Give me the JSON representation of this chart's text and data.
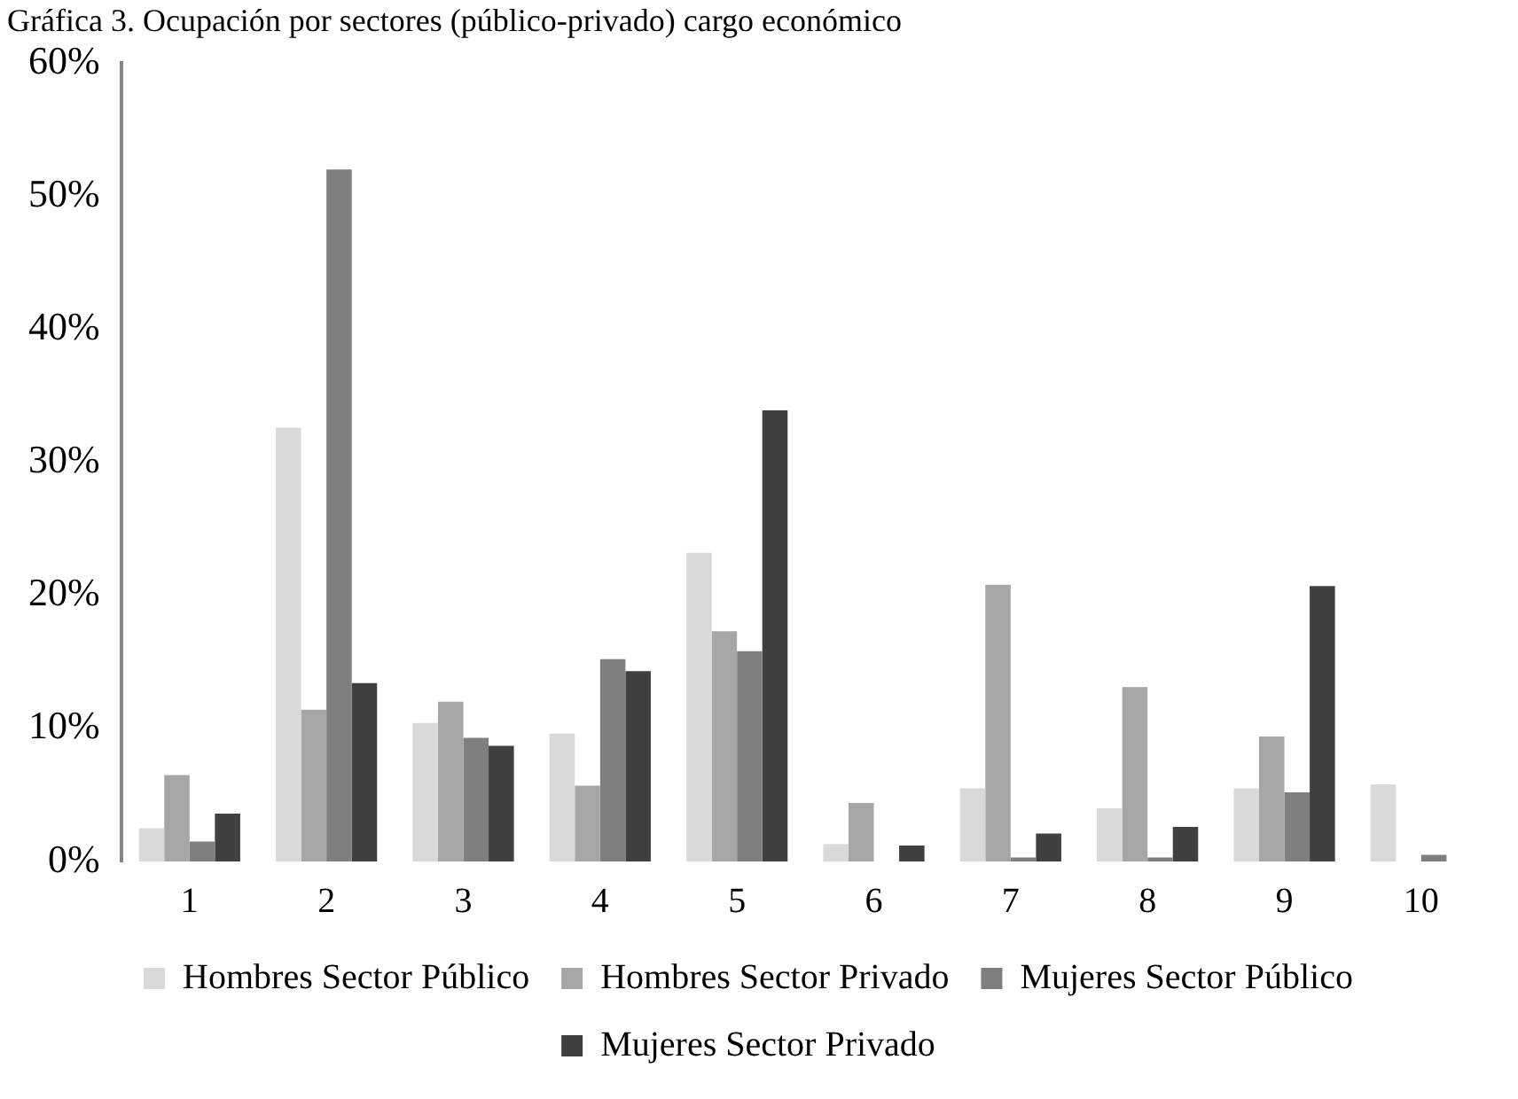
{
  "chart_data": {
    "type": "bar",
    "title": "Gráfica 3. Ocupación por sectores (público-privado) cargo económico",
    "categories": [
      "1",
      "2",
      "3",
      "4",
      "5",
      "6",
      "7",
      "8",
      "9",
      "10"
    ],
    "series": [
      {
        "name": "Hombres Sector Público",
        "color": "#d9d9d9",
        "values": [
          2.5,
          32.6,
          10.4,
          9.6,
          23.2,
          1.3,
          5.5,
          4.0,
          5.5,
          5.8
        ]
      },
      {
        "name": "Hombres Sector Privado",
        "color": "#a6a6a6",
        "values": [
          6.5,
          11.4,
          12.0,
          5.7,
          17.3,
          4.4,
          20.8,
          13.1,
          9.4,
          0
        ]
      },
      {
        "name": "Mujeres Sector Público",
        "color": "#7f7f7f",
        "values": [
          1.5,
          52.0,
          9.3,
          15.2,
          15.8,
          0,
          0.3,
          0.3,
          5.2,
          0.5
        ]
      },
      {
        "name": "Mujeres Sector Privado",
        "color": "#404040",
        "values": [
          3.6,
          13.4,
          8.7,
          14.3,
          33.9,
          1.2,
          2.1,
          2.6,
          20.7,
          0
        ]
      }
    ],
    "ylim": [
      0,
      60
    ],
    "yticks": [
      {
        "value": 0,
        "label": "0%"
      },
      {
        "value": 10,
        "label": "10%"
      },
      {
        "value": 20,
        "label": "20%"
      },
      {
        "value": 30,
        "label": "30%"
      },
      {
        "value": 40,
        "label": "40%"
      },
      {
        "value": 50,
        "label": "50%"
      },
      {
        "value": 60,
        "label": "60%"
      }
    ],
    "grid": false,
    "legend": "bottom"
  }
}
